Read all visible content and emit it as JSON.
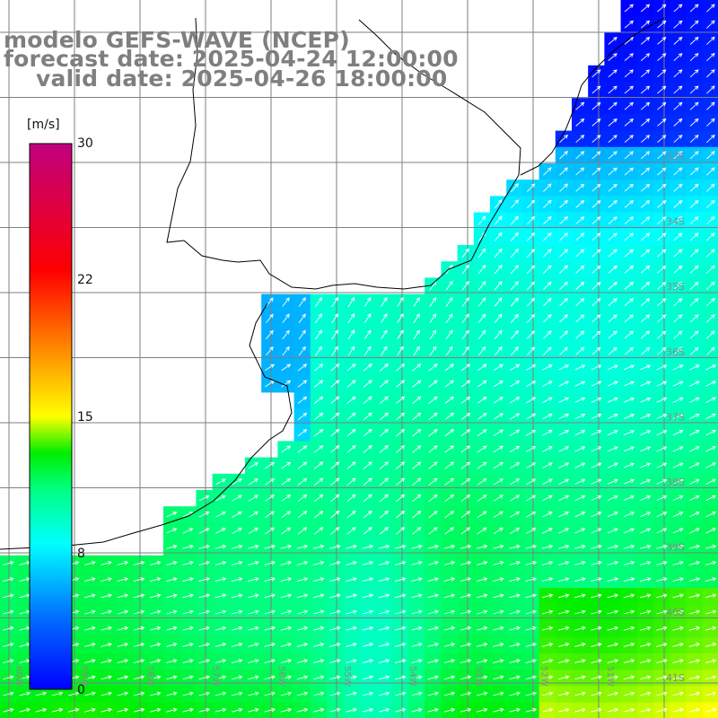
{
  "title": {
    "model": "modelo GEFS-WAVE (NCEP)",
    "forecast": "forecast date: 2025-04-24 12:00:00",
    "valid": "valid date: 2025-04-26 18:00:00"
  },
  "colorbar": {
    "unit": "[m/s]",
    "ticks": [
      "30",
      "22",
      "15",
      "8",
      "0"
    ],
    "tick_values": [
      30,
      22,
      15,
      8,
      0
    ],
    "range": [
      0,
      30
    ],
    "stops": [
      {
        "v": 0,
        "color": "#0000ff"
      },
      {
        "v": 4,
        "color": "#0070ff"
      },
      {
        "v": 8,
        "color": "#00ffff"
      },
      {
        "v": 11,
        "color": "#00ff80"
      },
      {
        "v": 13,
        "color": "#00ee00"
      },
      {
        "v": 15,
        "color": "#ffff00"
      },
      {
        "v": 19,
        "color": "#ff8000"
      },
      {
        "v": 23,
        "color": "#ff0000"
      },
      {
        "v": 30,
        "color": "#c00080"
      }
    ]
  },
  "grid": {
    "lat_labels": [
      "33S",
      "34S",
      "35S",
      "36S",
      "37S",
      "38S",
      "39S",
      "40S",
      "41S"
    ],
    "lon_labels": [
      "60W",
      "59W",
      "58W",
      "57W",
      "56W",
      "55W",
      "54W",
      "53W",
      "52W",
      "51W"
    ],
    "line_color": "#7f7f7f"
  },
  "colors": {
    "land": "#ffffff",
    "coast": "#000000",
    "arrows": "#ffffff",
    "title": "#7f7f7f"
  }
}
